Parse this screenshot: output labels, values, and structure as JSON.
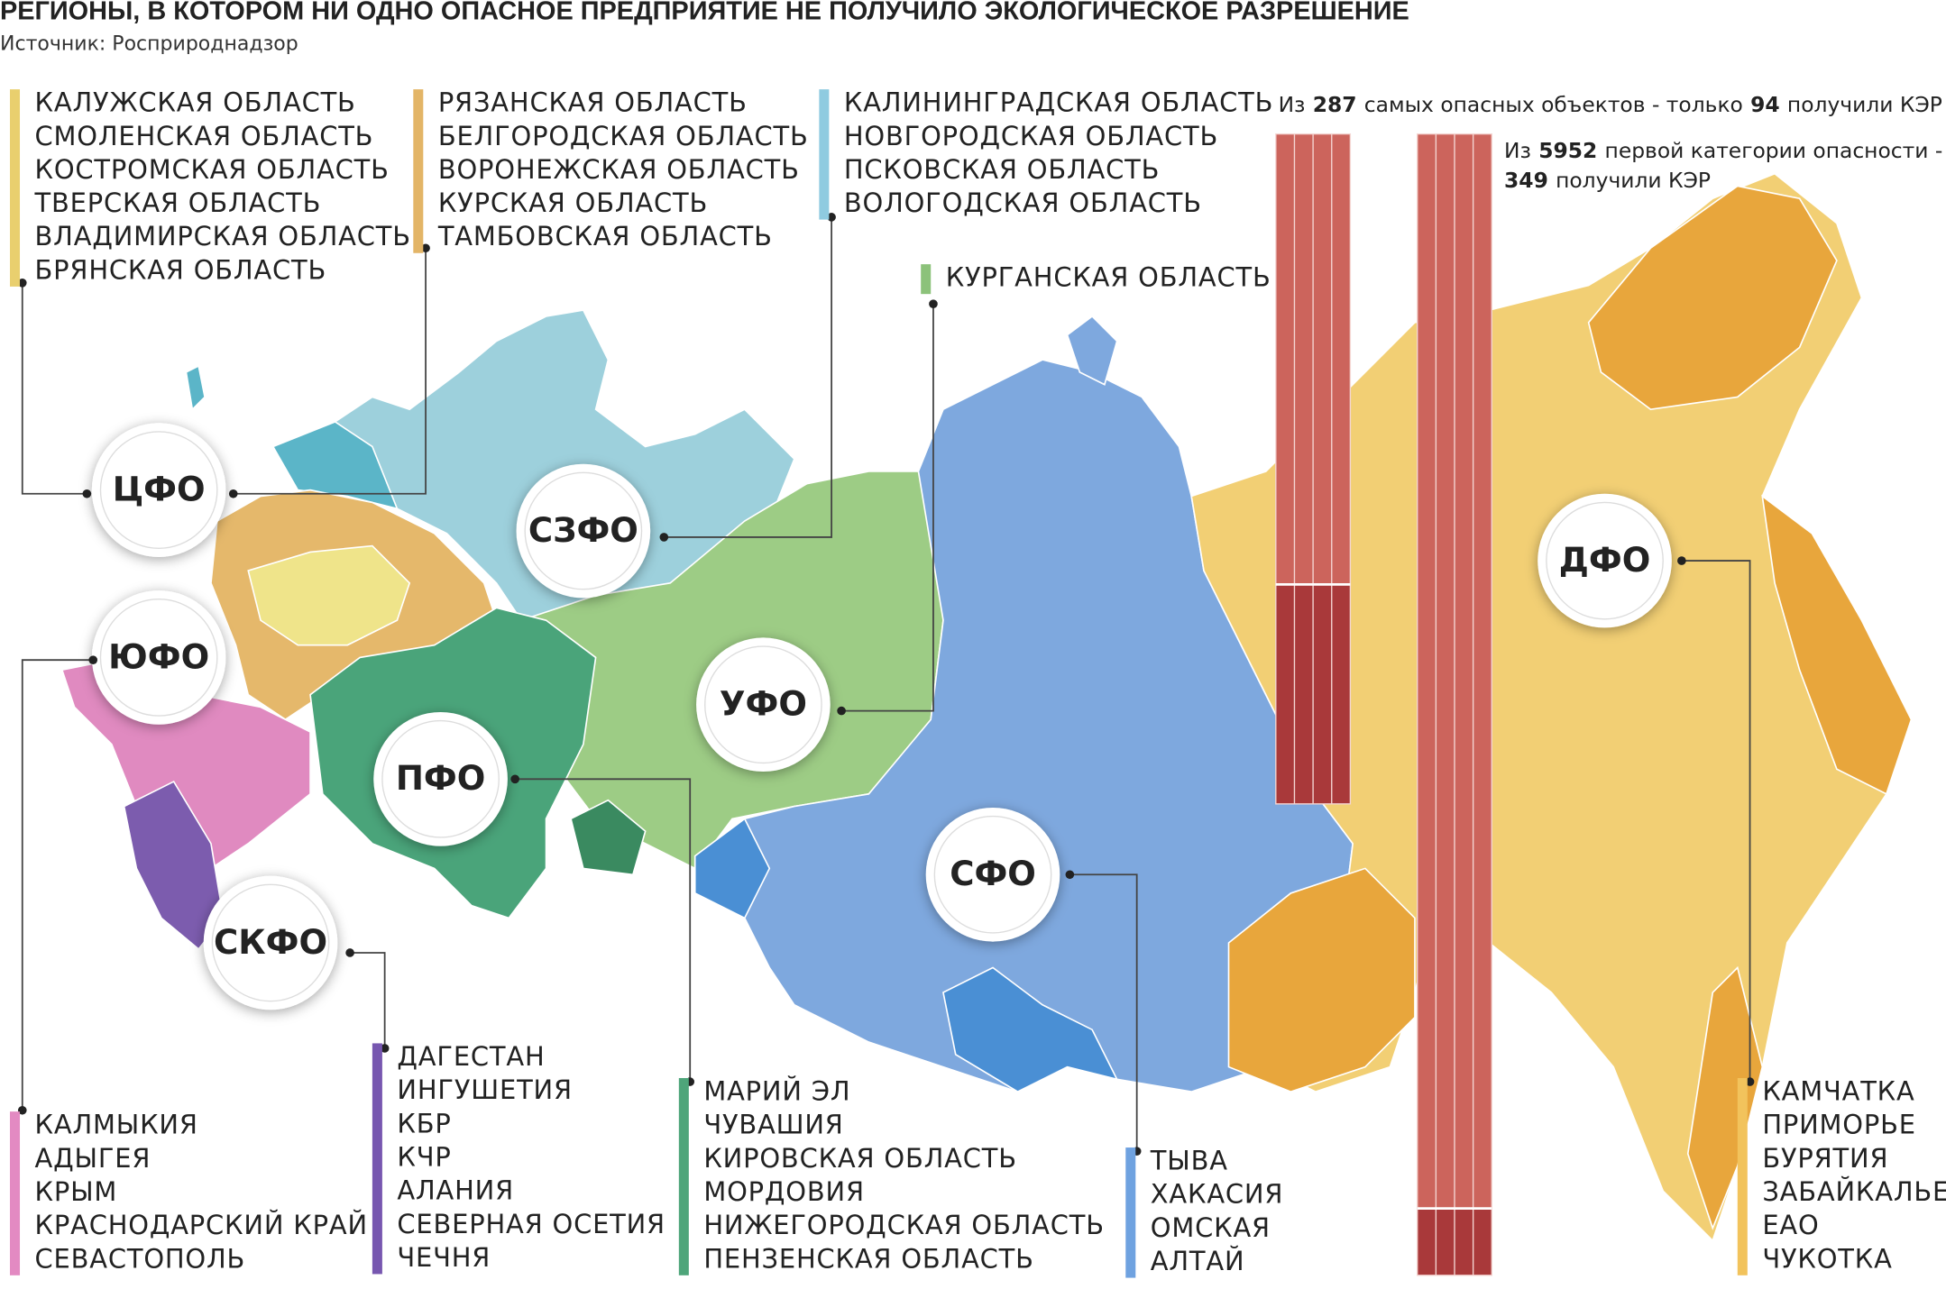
{
  "title": "РЕГИОНЫ, В КОТОРОМ НИ ОДНО ОПАСНОЕ ПРЕДПРИЯТИЕ НЕ ПОЛУЧИЛО ЭКОЛОГИЧЕСКОЕ РАЗРЕШЕНИЕ",
  "source": "Источник: Росприроднадзор",
  "districts": [
    "ЦФО",
    "ЮФО",
    "СЗФО",
    "УФО",
    "ПФО",
    "СФО",
    "СКФО",
    "ДФО"
  ],
  "lists": [
    {
      "color": "#e9cf6e",
      "regions": [
        "КАЛУЖСКАЯ ОБЛАСТЬ",
        "СМОЛЕНСКАЯ ОБЛАСТЬ",
        "КОСТРОМСКАЯ ОБЛАСТЬ",
        "ТВЕРСКАЯ ОБЛАСТЬ",
        "ВЛАДИМИРСКАЯ ОБЛАСТЬ",
        "БРЯНСКАЯ ОБЛАСТЬ"
      ]
    },
    {
      "color": "#e3b567",
      "regions": [
        "РЯЗАНСКАЯ ОБЛАСТЬ",
        "БЕЛГОРОДСКАЯ ОБЛАСТЬ",
        "ВОРОНЕЖСКАЯ ОБЛАСТЬ",
        "КУРСКАЯ ОБЛАСТЬ",
        "ТАМБОВСКАЯ ОБЛАСТЬ"
      ]
    },
    {
      "color": "#8fcbe0",
      "regions": [
        "КАЛИНИНГРАДСКАЯ ОБЛАСТЬ",
        "НОВГОРОДСКАЯ ОБЛАСТЬ",
        "ПСКОВСКАЯ ОБЛАСТЬ",
        "ВОЛОГОДСКАЯ ОБЛАСТЬ"
      ]
    },
    {
      "color": "#8cc27a",
      "regions": [
        "КУРГАНСКАЯ ОБЛАСТЬ"
      ]
    },
    {
      "color": "#e38ac2",
      "regions": [
        "КАЛМЫКИЯ",
        "АДЫГЕЯ",
        "КРЫМ",
        "КРАСНОДАРСКИЙ КРАЙ",
        "СЕВАСТОПОЛЬ"
      ]
    },
    {
      "color": "#7757b0",
      "regions": [
        "ДАГЕСТАН",
        "ИНГУШЕТИЯ",
        "КБР",
        "КЧР",
        "АЛАНИЯ",
        "СЕВЕРНАЯ ОСЕТИЯ",
        "ЧЕЧНЯ"
      ]
    },
    {
      "color": "#4ea57a",
      "regions": [
        "МАРИЙ ЭЛ",
        "ЧУВАШИЯ",
        "КИРОВСКАЯ ОБЛАСТЬ",
        "МОРДОВИЯ",
        "НИЖЕГОРОДСКАЯ ОБЛАСТЬ",
        "ПЕНЗЕНСКАЯ ОБЛАСТЬ"
      ]
    },
    {
      "color": "#6fa2e0",
      "regions": [
        "ТЫВА",
        "ХАКАСИЯ",
        "ОМСКАЯ",
        "АЛТАЙ"
      ]
    },
    {
      "color": "#f2c35c",
      "regions": [
        "КАМЧАТКА",
        "ПРИМОРЬЕ",
        "БУРЯТИЯ",
        "ЗАБАЙКАЛЬЕ",
        "ЕАО",
        "ЧУКОТКА"
      ]
    }
  ],
  "bars": [
    {
      "prefix": "Из",
      "total": 287,
      "middle": "самых опасных объектов - только",
      "part": 94,
      "suffix": "получили КЭР"
    },
    {
      "prefix": "Из",
      "total": 5952,
      "middle": "первой категории опасности -",
      "part": 349,
      "suffix": "получили КЭР"
    }
  ]
}
